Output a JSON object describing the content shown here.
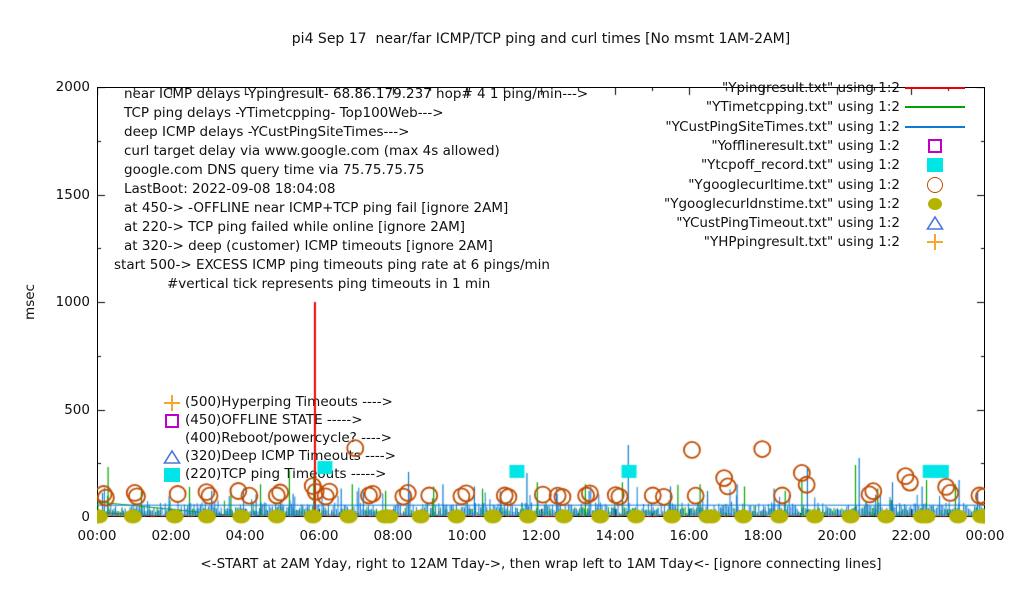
{
  "chart_data": {
    "type": "line-scatter",
    "title": "pi4 Sep 17  near/far ICMP/TCP ping and curl times [No msmt 1AM-2AM]",
    "ylabel": "msec",
    "xlabel": "<-START at 2AM Yday, right to 12AM Tday->, then wrap left to 1AM Tday<- [ignore connecting lines]",
    "ylim": [
      0,
      2000
    ],
    "xlim_hours": [
      0,
      24
    ],
    "grid": false,
    "legend_position": "top-right-inside",
    "y_ticks": [
      {
        "v": 0,
        "label": "0"
      },
      {
        "v": 500,
        "label": "500"
      },
      {
        "v": 1000,
        "label": "1000"
      },
      {
        "v": 1500,
        "label": "1500"
      },
      {
        "v": 2000,
        "label": "2000"
      }
    ],
    "x_ticks": [
      {
        "h": 0,
        "label": "00:00"
      },
      {
        "h": 2,
        "label": "02:00"
      },
      {
        "h": 4,
        "label": "04:00"
      },
      {
        "h": 6,
        "label": "06:00"
      },
      {
        "h": 8,
        "label": "08:00"
      },
      {
        "h": 10,
        "label": "10:00"
      },
      {
        "h": 12,
        "label": "12:00"
      },
      {
        "h": 14,
        "label": "14:00"
      },
      {
        "h": 16,
        "label": "16:00"
      },
      {
        "h": 18,
        "label": "18:00"
      },
      {
        "h": 20,
        "label": "20:00"
      },
      {
        "h": 22,
        "label": "22:00"
      },
      {
        "h": 24,
        "label": "00:00"
      }
    ],
    "noise_seed": 20220917,
    "series": [
      {
        "name": "near-icmp-ping",
        "legend": "\"Ypingresult.txt\" using 1:2",
        "color": "#ee0000",
        "kind": "line",
        "baseline": 5,
        "noise": 6,
        "grass": false,
        "spikes": [
          [
            5.89,
            1000
          ],
          [
            8.42,
            55
          ]
        ],
        "wrap_segment": [
          [
            0,
            22
          ],
          [
            1.6,
            4
          ]
        ]
      },
      {
        "name": "tcp-ping",
        "legend": "\"YTimetcpping.txt\" using 1:2",
        "color": "#00a400",
        "kind": "line",
        "baseline": 4,
        "noise": 42,
        "grass": true,
        "tall_chance": 0.08,
        "tall_extra": 70,
        "spikes": [
          [
            0.3,
            233
          ],
          [
            1.2,
            120
          ],
          [
            2.5,
            140
          ],
          [
            3.62,
            122
          ],
          [
            4.42,
            152
          ],
          [
            5.2,
            218
          ],
          [
            5.86,
            195
          ],
          [
            6.9,
            152
          ],
          [
            7.8,
            122
          ],
          [
            9.1,
            142
          ],
          [
            10.42,
            132
          ],
          [
            11.9,
            162
          ],
          [
            13.2,
            152
          ],
          [
            14.2,
            162
          ],
          [
            15.7,
            150
          ],
          [
            16.3,
            152
          ],
          [
            17.5,
            142
          ],
          [
            18.6,
            122
          ],
          [
            19.05,
            172
          ],
          [
            20.5,
            242
          ],
          [
            21.1,
            132
          ],
          [
            22.42,
            172
          ],
          [
            23.2,
            152
          ]
        ],
        "wrap_segment": [
          [
            0,
            70
          ],
          [
            3.6,
            8
          ]
        ]
      },
      {
        "name": "deep-icmp-ping",
        "legend": "\"YCustPingSiteTimes.txt\" using 1:2",
        "color": "#0e7ad4",
        "kind": "line",
        "baseline": 10,
        "noise": 58,
        "grass": true,
        "tall_chance": 0.1,
        "tall_extra": 85,
        "flat_level": 55,
        "spikes": [
          [
            0.15,
            112
          ],
          [
            1.95,
            96
          ],
          [
            3.1,
            122
          ],
          [
            4.3,
            105
          ],
          [
            5.3,
            108
          ],
          [
            6.6,
            132
          ],
          [
            7.2,
            118
          ],
          [
            8.42,
            210
          ],
          [
            9.35,
            152
          ],
          [
            10.2,
            142
          ],
          [
            10.9,
            120
          ],
          [
            11.62,
            205
          ],
          [
            12.42,
            132
          ],
          [
            13.3,
            122
          ],
          [
            14.36,
            335
          ],
          [
            15.5,
            142
          ],
          [
            16.5,
            122
          ],
          [
            17.3,
            152
          ],
          [
            18.3,
            132
          ],
          [
            19.2,
            228
          ],
          [
            20.6,
            275
          ],
          [
            21.5,
            162
          ],
          [
            22.3,
            142
          ],
          [
            23.3,
            172
          ],
          [
            23.8,
            122
          ]
        ],
        "wrap_segment": null
      },
      {
        "name": "offline-state",
        "legend": "\"Yofflineresult.txt\" using 1:2",
        "color": "#c000c8",
        "kind": "scatter",
        "marker": "open-square",
        "points": []
      },
      {
        "name": "tcp-off-record",
        "legend": "\"Ytcpoff_record.txt\" using 1:2",
        "color": "#00e5e5",
        "kind": "scatter",
        "marker": "filled-square",
        "points": [
          [
            6.16,
            230
          ],
          [
            11.35,
            212
          ],
          [
            14.38,
            212
          ],
          [
            22.52,
            212
          ],
          [
            22.82,
            212
          ]
        ]
      },
      {
        "name": "google-curl-time",
        "legend": "\"Ygooglecurltime.txt\" using 1:2",
        "color": "#bf4b00",
        "kind": "scatter",
        "marker": "open-circle",
        "points": [
          [
            0.18,
            107
          ],
          [
            0.24,
            90
          ],
          [
            1.02,
            112
          ],
          [
            1.08,
            96
          ],
          [
            2.18,
            107
          ],
          [
            2.96,
            116
          ],
          [
            3.04,
            99
          ],
          [
            3.82,
            121
          ],
          [
            4.12,
            99
          ],
          [
            4.86,
            100
          ],
          [
            4.95,
            114
          ],
          [
            5.83,
            144
          ],
          [
            5.91,
            117
          ],
          [
            6.18,
            96
          ],
          [
            6.28,
            118
          ],
          [
            6.98,
            320
          ],
          [
            7.35,
            100
          ],
          [
            7.45,
            108
          ],
          [
            8.28,
            95
          ],
          [
            8.4,
            112
          ],
          [
            8.98,
            100
          ],
          [
            9.85,
            96
          ],
          [
            9.98,
            110
          ],
          [
            11.02,
            100
          ],
          [
            11.12,
            93
          ],
          [
            12.05,
            104
          ],
          [
            12.45,
            99
          ],
          [
            12.58,
            93
          ],
          [
            13.22,
            100
          ],
          [
            13.32,
            110
          ],
          [
            14.02,
            102
          ],
          [
            14.12,
            95
          ],
          [
            15.02,
            100
          ],
          [
            15.32,
            94
          ],
          [
            16.08,
            312
          ],
          [
            16.18,
            99
          ],
          [
            16.95,
            181
          ],
          [
            17.05,
            142
          ],
          [
            17.98,
            316
          ],
          [
            18.52,
            100
          ],
          [
            19.05,
            205
          ],
          [
            19.18,
            150
          ],
          [
            20.88,
            105
          ],
          [
            20.98,
            120
          ],
          [
            21.85,
            190
          ],
          [
            21.97,
            160
          ],
          [
            22.95,
            140
          ],
          [
            23.06,
            112
          ],
          [
            23.85,
            100
          ],
          [
            23.97,
            95
          ]
        ]
      },
      {
        "name": "google-dns-time",
        "legend": "\"Ygooglecurldnstime.txt\" using 1:2",
        "color": "#b3b300",
        "kind": "scatter",
        "marker": "filled-circle",
        "points": [
          [
            0.05,
            2
          ],
          [
            0.97,
            2
          ],
          [
            2.1,
            2
          ],
          [
            2.97,
            2
          ],
          [
            3.9,
            2
          ],
          [
            4.86,
            2
          ],
          [
            5.84,
            2
          ],
          [
            6.8,
            2
          ],
          [
            7.78,
            2
          ],
          [
            7.9,
            2
          ],
          [
            8.75,
            2
          ],
          [
            9.72,
            2
          ],
          [
            10.7,
            2
          ],
          [
            11.65,
            2
          ],
          [
            12.62,
            2
          ],
          [
            13.6,
            2
          ],
          [
            14.57,
            2
          ],
          [
            15.54,
            2
          ],
          [
            16.5,
            2
          ],
          [
            16.62,
            2
          ],
          [
            17.47,
            2
          ],
          [
            18.44,
            2
          ],
          [
            19.4,
            2
          ],
          [
            20.37,
            2
          ],
          [
            21.33,
            2
          ],
          [
            22.3,
            2
          ],
          [
            22.42,
            2
          ],
          [
            23.27,
            2
          ],
          [
            23.9,
            2
          ],
          [
            23.98,
            2
          ]
        ]
      },
      {
        "name": "cust-ping-timeout",
        "legend": "\"YCustPingTimeout.txt\" using 1:2",
        "color": "#4a76d8",
        "kind": "scatter",
        "marker": "open-triangle",
        "points": []
      },
      {
        "name": "hp-ping-result",
        "legend": "\"YHPpingresult.txt\" using 1:2",
        "color": "#f5a732",
        "kind": "scatter",
        "marker": "plus",
        "points": []
      }
    ],
    "info_lines": [
      {
        "text": "near ICMP delays -Ypingresult- 68.86.179.237 hop# 4 1 ping/min--->",
        "indent": 27
      },
      {
        "text": "TCP ping delays -YTimetcpping- Top100Web--->",
        "indent": 27
      },
      {
        "text": "deep ICMP delays -YCustPingSiteTimes--->",
        "indent": 27
      },
      {
        "text": "curl target delay via www.google.com (max 4s allowed)",
        "indent": 27
      },
      {
        "text": "google.com DNS query time via 75.75.75.75",
        "indent": 27
      },
      {
        "text": "LastBoot: 2022-09-08 18:04:08",
        "indent": 27
      },
      {
        "text": "at 450-> -OFFLINE near ICMP+TCP ping fail [ignore 2AM]",
        "indent": 27
      },
      {
        "text": "at 220-> TCP ping failed while online [ignore 2AM]",
        "indent": 27
      },
      {
        "text": "at 320-> deep (customer) ICMP timeouts [ignore 2AM]",
        "indent": 27
      },
      {
        "text": "start 500-> EXCESS ICMP ping timeouts ping rate at 6 pings/min",
        "indent": 17
      },
      {
        "text": "#vertical tick represents ping timeouts in 1 min",
        "indent": 70
      }
    ],
    "annotations": [
      {
        "marker": "plus",
        "color": "#f5a732",
        "text": "(500)Hyperping Timeouts ---->"
      },
      {
        "marker": "open-square",
        "color": "#c000c8",
        "text": "(450)OFFLINE STATE ----->"
      },
      {
        "marker": "none",
        "color": "",
        "text": "(400)Reboot/powercycle? ---->"
      },
      {
        "marker": "open-triangle",
        "color": "#4a76d8",
        "text": "(320)Deep ICMP Timeouts ---->"
      },
      {
        "marker": "filled-square",
        "color": "#00e5e5",
        "text": "(220)TCP ping Timeouts ----->"
      }
    ]
  }
}
